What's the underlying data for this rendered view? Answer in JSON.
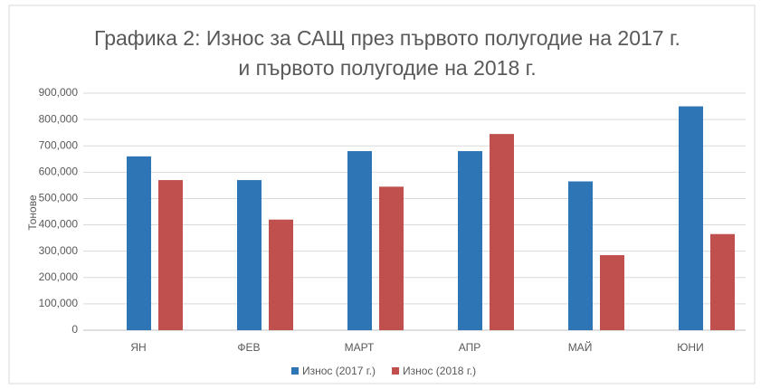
{
  "chart_data": {
    "type": "bar",
    "title": "Графика 2: Износ за САЩ през първото полугодие на 2017 г. и първото полугодие на 2018 г.",
    "y_label": "Тонове",
    "categories": [
      "ЯН",
      "ФЕВ",
      "МАРТ",
      "АПР",
      "МАЙ",
      "ЮНИ"
    ],
    "series": [
      {
        "name": "Износ (2017 г.)",
        "color": "#2e75b6",
        "values": [
          660000,
          570000,
          680000,
          680000,
          565000,
          850000
        ]
      },
      {
        "name": "Износ (2018 г.)",
        "color": "#c0504d",
        "values": [
          570000,
          420000,
          545000,
          745000,
          285000,
          365000
        ]
      }
    ],
    "ylim": [
      0,
      900000
    ],
    "yticks": [
      0,
      {
        "value": 100000,
        "label": "100,000"
      },
      {
        "value": 200000,
        "label": "200,000"
      },
      {
        "value": 300000,
        "label": "300,000"
      },
      {
        "value": 400000,
        "label": "400,000"
      },
      {
        "value": 500000,
        "label": "500,000"
      },
      {
        "value": 600000,
        "label": "600,000"
      },
      {
        "value": 700000,
        "label": "700,000"
      },
      {
        "value": 800000,
        "label": "800,000"
      },
      {
        "value": 900000,
        "label": "900,000"
      }
    ],
    "grid": true,
    "legend": "bottom"
  }
}
